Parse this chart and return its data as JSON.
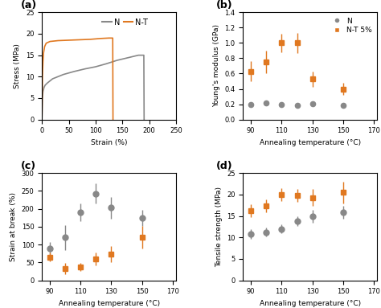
{
  "panel_a": {
    "N_strain": [
      0,
      1,
      2,
      4,
      6,
      10,
      20,
      40,
      60,
      80,
      100,
      120,
      140,
      160,
      180,
      190,
      190.5
    ],
    "N_stress": [
      0,
      5.0,
      6.5,
      7.5,
      8.0,
      8.5,
      9.5,
      10.5,
      11.2,
      11.8,
      12.3,
      13.0,
      13.8,
      14.4,
      15.0,
      15.0,
      0
    ],
    "NT_strain": [
      0,
      1,
      2,
      3,
      5,
      8,
      15,
      30,
      50,
      70,
      90,
      110,
      125,
      132,
      132.5
    ],
    "NT_stress": [
      0,
      10.0,
      13.5,
      15.5,
      17.0,
      17.8,
      18.2,
      18.4,
      18.5,
      18.6,
      18.7,
      18.9,
      19.0,
      19.0,
      0
    ],
    "xlim": [
      0,
      250
    ],
    "ylim": [
      0,
      25
    ],
    "xlabel": "Strain (%)",
    "ylabel": "Stress (MPa)",
    "xticks": [
      0,
      50,
      100,
      150,
      200,
      250
    ],
    "yticks": [
      0,
      5,
      10,
      15,
      20,
      25
    ]
  },
  "panel_b": {
    "temps": [
      90,
      100,
      110,
      120,
      130,
      150
    ],
    "N_val": [
      0.2,
      0.22,
      0.2,
      0.18,
      0.21,
      0.19
    ],
    "NT_val": [
      0.63,
      0.75,
      1.0,
      1.0,
      0.53,
      0.4
    ],
    "N_err": [
      0.02,
      0.02,
      0.02,
      0.02,
      0.02,
      0.02
    ],
    "NT_err": [
      0.13,
      0.15,
      0.12,
      0.13,
      0.1,
      0.08
    ],
    "xlim": [
      85,
      172
    ],
    "ylim": [
      0,
      1.4
    ],
    "xlabel": "Annealing temperature (°C)",
    "ylabel": "Young's modulus (GPa)",
    "xticks": [
      90,
      110,
      130,
      150,
      170
    ],
    "yticks": [
      0.0,
      0.2,
      0.4,
      0.6,
      0.8,
      1.0,
      1.2,
      1.4
    ]
  },
  "panel_c": {
    "temps": [
      90,
      100,
      110,
      120,
      130,
      150
    ],
    "N_val": [
      88,
      120,
      190,
      243,
      203,
      175
    ],
    "NT_val": [
      65,
      33,
      37,
      60,
      73,
      120
    ],
    "N_err": [
      20,
      35,
      25,
      28,
      30,
      22
    ],
    "NT_err": [
      12,
      15,
      12,
      18,
      22,
      32
    ],
    "xlim": [
      85,
      172
    ],
    "ylim": [
      0,
      300
    ],
    "xlabel": "Annealing temperature (°C)",
    "ylabel": "Strain at break (%)",
    "xticks": [
      90,
      110,
      130,
      150,
      170
    ],
    "yticks": [
      0,
      50,
      100,
      150,
      200,
      250,
      300
    ]
  },
  "panel_d": {
    "temps": [
      90,
      100,
      110,
      120,
      130,
      150
    ],
    "N_val": [
      10.8,
      11.2,
      12.0,
      13.8,
      15.0,
      15.8
    ],
    "NT_val": [
      16.3,
      17.3,
      20.0,
      19.8,
      19.3,
      20.5
    ],
    "N_err": [
      1.2,
      1.0,
      1.0,
      1.2,
      1.5,
      1.5
    ],
    "NT_err": [
      1.5,
      1.5,
      1.5,
      1.5,
      2.0,
      2.5
    ],
    "xlim": [
      85,
      172
    ],
    "ylim": [
      0,
      25
    ],
    "xlabel": "Annealing temperature (°C)",
    "ylabel": "Tensile strength (MPa)",
    "xticks": [
      90,
      110,
      130,
      150,
      170
    ],
    "yticks": [
      0,
      5,
      10,
      15,
      20,
      25
    ]
  },
  "color_N": "#888888",
  "color_NT": "#E07820"
}
